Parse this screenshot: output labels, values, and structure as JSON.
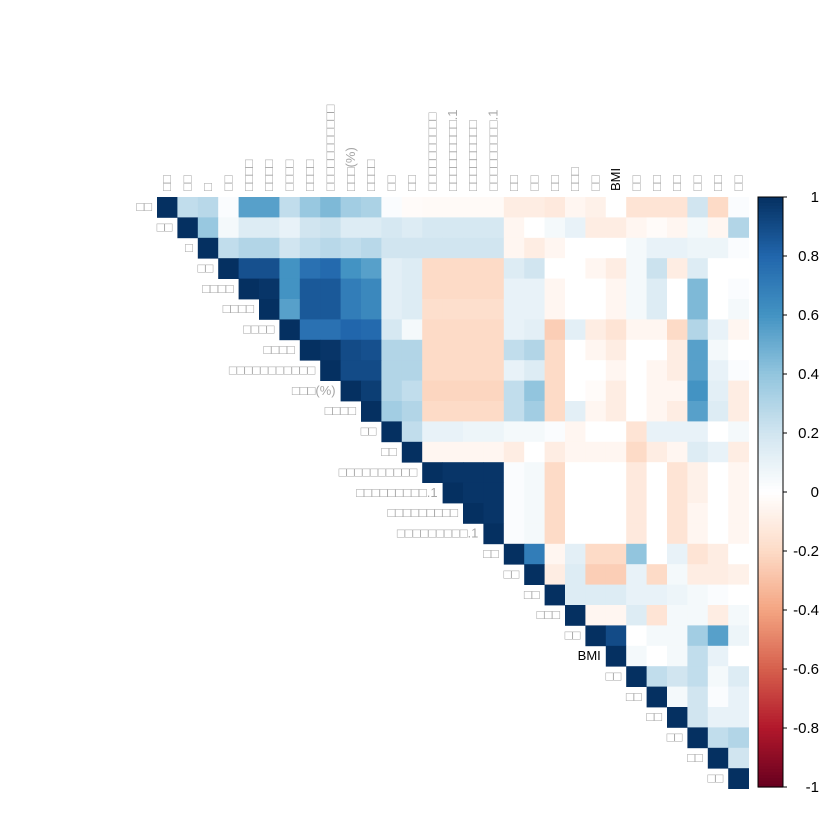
{
  "chart_data": {
    "type": "heatmap",
    "layout": "upper-triangular correlation matrix",
    "labels": [
      "□□",
      "□□",
      "□",
      "□□",
      "□□□□",
      "□□□□",
      "□□□□",
      "□□□□",
      "□□□□□□□□□□□",
      "□□□(%)",
      "□□□□",
      "□□",
      "□□",
      "□□□□□□□□□□",
      "□□□□□□□□□.1",
      "□□□□□□□□□",
      "□□□□□□□□□.1",
      "□□",
      "□□",
      "□□",
      "□□□",
      "□□",
      "BMI",
      "□□",
      "□□",
      "□□",
      "□□",
      "□□",
      "□□"
    ],
    "colorbar": {
      "ticks": [
        "1",
        "0.8",
        "0.6",
        "0.4",
        "0.2",
        "0",
        "-0.2",
        "-0.4",
        "-0.6",
        "-0.8",
        "-1"
      ],
      "range": [
        -1,
        1
      ]
    },
    "palette": [
      "#67001F",
      "#B2182B",
      "#D6604D",
      "#F4A582",
      "#FDDBC7",
      "#FFFFFF",
      "#D1E5F0",
      "#92C5DE",
      "#4393C3",
      "#2166AC",
      "#053061"
    ],
    "values": [
      [
        1,
        0.25,
        0.28,
        0.02,
        0.55,
        0.55,
        0.25,
        0.38,
        0.45,
        0.35,
        0.32,
        0.02,
        -0.02,
        -0.03,
        -0.03,
        -0.03,
        -0.03,
        -0.1,
        -0.1,
        -0.12,
        -0.05,
        -0.08,
        0,
        -0.15,
        -0.15,
        -0.15,
        0.2,
        -0.2,
        0.02
      ],
      [
        null,
        1,
        0.38,
        0.05,
        0.15,
        0.15,
        0.1,
        0.2,
        0.22,
        0.15,
        0.15,
        0.18,
        0.15,
        0.18,
        0.18,
        0.18,
        0.18,
        -0.05,
        0,
        0.05,
        0.1,
        -0.1,
        -0.1,
        -0.05,
        -0.02,
        -0.05,
        0.05,
        -0.05,
        0.3
      ],
      [
        null,
        null,
        1,
        0.25,
        0.3,
        0.3,
        0.2,
        0.25,
        0.28,
        0.25,
        0.28,
        0.2,
        0.2,
        0.2,
        0.2,
        0.2,
        0.2,
        -0.05,
        -0.1,
        -0.05,
        0,
        0,
        0,
        0.05,
        0.1,
        0.1,
        0.08,
        0.08,
        0.02
      ],
      [
        null,
        null,
        null,
        1,
        0.88,
        0.88,
        0.6,
        0.75,
        0.78,
        0.6,
        0.55,
        0.12,
        0.15,
        -0.2,
        -0.2,
        -0.2,
        -0.2,
        0.15,
        0.2,
        0,
        0,
        -0.05,
        -0.1,
        0.05,
        0.22,
        -0.1,
        0.15,
        0,
        0
      ],
      [
        null,
        null,
        null,
        null,
        1,
        0.98,
        0.6,
        0.85,
        0.85,
        0.7,
        0.65,
        0.12,
        0.15,
        -0.2,
        -0.2,
        -0.2,
        -0.2,
        0.1,
        0.1,
        -0.05,
        0,
        0,
        -0.05,
        0.05,
        0.15,
        0,
        0.45,
        0,
        0.02
      ],
      [
        null,
        null,
        null,
        null,
        null,
        1,
        0.55,
        0.85,
        0.85,
        0.7,
        0.65,
        0.12,
        0.15,
        -0.18,
        -0.18,
        -0.18,
        -0.18,
        0.1,
        0.1,
        -0.05,
        0,
        0,
        -0.05,
        0.05,
        0.15,
        0,
        0.45,
        0,
        0.05
      ],
      [
        null,
        null,
        null,
        null,
        null,
        null,
        1,
        0.75,
        0.75,
        0.8,
        0.78,
        0.18,
        0.05,
        -0.2,
        -0.2,
        -0.2,
        -0.2,
        0.1,
        0.12,
        -0.25,
        0.12,
        -0.1,
        -0.15,
        -0.05,
        -0.05,
        -0.2,
        0.3,
        0.1,
        -0.05
      ],
      [
        null,
        null,
        null,
        null,
        null,
        null,
        null,
        1,
        0.98,
        0.9,
        0.88,
        0.3,
        0.3,
        -0.2,
        -0.2,
        -0.2,
        -0.2,
        0.25,
        0.3,
        -0.2,
        0,
        -0.05,
        -0.1,
        0,
        0,
        -0.1,
        0.55,
        0.05,
        0
      ],
      [
        null,
        null,
        null,
        null,
        null,
        null,
        null,
        null,
        1,
        0.9,
        0.9,
        0.3,
        0.3,
        -0.2,
        -0.2,
        -0.2,
        -0.2,
        0.1,
        0.15,
        -0.2,
        0,
        0,
        -0.05,
        0,
        -0.05,
        -0.1,
        0.55,
        0.1,
        0.02
      ],
      [
        null,
        null,
        null,
        null,
        null,
        null,
        null,
        null,
        null,
        1,
        0.95,
        0.3,
        0.25,
        -0.22,
        -0.22,
        -0.22,
        -0.22,
        0.25,
        0.4,
        -0.2,
        0,
        -0.02,
        -0.1,
        0,
        -0.05,
        -0.05,
        0.6,
        0.12,
        -0.1
      ],
      [
        null,
        null,
        null,
        null,
        null,
        null,
        null,
        null,
        null,
        null,
        1,
        0.35,
        0.3,
        -0.2,
        -0.2,
        -0.2,
        -0.2,
        0.25,
        0.35,
        -0.2,
        0.12,
        -0.05,
        -0.1,
        0,
        -0.05,
        -0.1,
        0.55,
        0.15,
        -0.1
      ],
      [
        null,
        null,
        null,
        null,
        null,
        null,
        null,
        null,
        null,
        null,
        null,
        1,
        0.25,
        0.1,
        0.1,
        0.08,
        0.08,
        0.05,
        0.05,
        0.02,
        -0.05,
        0,
        0,
        -0.15,
        0.1,
        0.1,
        0.1,
        0,
        0.05
      ],
      [
        null,
        null,
        null,
        null,
        null,
        null,
        null,
        null,
        null,
        null,
        null,
        null,
        1,
        -0.05,
        -0.05,
        -0.05,
        -0.05,
        -0.1,
        0,
        -0.1,
        -0.05,
        -0.05,
        -0.05,
        -0.2,
        -0.1,
        -0.05,
        0.15,
        0.1,
        -0.1
      ],
      [
        null,
        null,
        null,
        null,
        null,
        null,
        null,
        null,
        null,
        null,
        null,
        null,
        null,
        1,
        0.98,
        0.98,
        0.98,
        0.02,
        0.05,
        -0.2,
        0,
        0,
        0,
        -0.12,
        0,
        -0.15,
        -0.08,
        0,
        -0.05
      ],
      [
        null,
        null,
        null,
        null,
        null,
        null,
        null,
        null,
        null,
        null,
        null,
        null,
        null,
        null,
        1,
        0.98,
        0.98,
        0.02,
        0.05,
        -0.2,
        0,
        0,
        0,
        -0.12,
        0,
        -0.15,
        -0.08,
        0,
        -0.05
      ],
      [
        null,
        null,
        null,
        null,
        null,
        null,
        null,
        null,
        null,
        null,
        null,
        null,
        null,
        null,
        null,
        1,
        0.98,
        0.02,
        0.05,
        -0.2,
        0,
        0,
        0,
        -0.12,
        0,
        -0.15,
        -0.05,
        0,
        -0.05
      ],
      [
        null,
        null,
        null,
        null,
        null,
        null,
        null,
        null,
        null,
        null,
        null,
        null,
        null,
        null,
        null,
        null,
        1,
        0.02,
        0.05,
        -0.2,
        0,
        0,
        0,
        -0.12,
        0,
        -0.15,
        -0.05,
        0,
        -0.05
      ],
      [
        null,
        null,
        null,
        null,
        null,
        null,
        null,
        null,
        null,
        null,
        null,
        null,
        null,
        null,
        null,
        null,
        null,
        1,
        0.7,
        -0.05,
        0.12,
        -0.2,
        -0.2,
        0.4,
        0,
        0.1,
        -0.15,
        -0.1,
        0
      ],
      [
        null,
        null,
        null,
        null,
        null,
        null,
        null,
        null,
        null,
        null,
        null,
        null,
        null,
        null,
        null,
        null,
        null,
        null,
        1,
        -0.1,
        0.15,
        -0.25,
        -0.25,
        0.1,
        -0.2,
        0.05,
        -0.1,
        -0.1,
        -0.08
      ],
      [
        null,
        null,
        null,
        null,
        null,
        null,
        null,
        null,
        null,
        null,
        null,
        null,
        null,
        null,
        null,
        null,
        null,
        null,
        null,
        1,
        0.15,
        0.15,
        0.15,
        0.1,
        0.1,
        0.08,
        0.05,
        0.02,
        0
      ],
      [
        null,
        null,
        null,
        null,
        null,
        null,
        null,
        null,
        null,
        null,
        null,
        null,
        null,
        null,
        null,
        null,
        null,
        null,
        null,
        null,
        1,
        -0.05,
        -0.05,
        0.15,
        -0.15,
        0.05,
        0.05,
        -0.1,
        0.05
      ],
      [
        null,
        null,
        null,
        null,
        null,
        null,
        null,
        null,
        null,
        null,
        null,
        null,
        null,
        null,
        null,
        null,
        null,
        null,
        null,
        null,
        null,
        1,
        0.9,
        0,
        0.05,
        0.05,
        0.35,
        0.55,
        0.08
      ],
      [
        null,
        null,
        null,
        null,
        null,
        null,
        null,
        null,
        null,
        null,
        null,
        null,
        null,
        null,
        null,
        null,
        null,
        null,
        null,
        null,
        null,
        null,
        1,
        0.05,
        0,
        0.05,
        0.25,
        0.1,
        0
      ],
      [
        null,
        null,
        null,
        null,
        null,
        null,
        null,
        null,
        null,
        null,
        null,
        null,
        null,
        null,
        null,
        null,
        null,
        null,
        null,
        null,
        null,
        null,
        null,
        1,
        0.25,
        0.2,
        0.25,
        0.05,
        0.15
      ],
      [
        null,
        null,
        null,
        null,
        null,
        null,
        null,
        null,
        null,
        null,
        null,
        null,
        null,
        null,
        null,
        null,
        null,
        null,
        null,
        null,
        null,
        null,
        null,
        null,
        1,
        0.05,
        0.2,
        0.02,
        0.1
      ],
      [
        null,
        null,
        null,
        null,
        null,
        null,
        null,
        null,
        null,
        null,
        null,
        null,
        null,
        null,
        null,
        null,
        null,
        null,
        null,
        null,
        null,
        null,
        null,
        null,
        null,
        1,
        0.2,
        0.1,
        0.1
      ],
      [
        null,
        null,
        null,
        null,
        null,
        null,
        null,
        null,
        null,
        null,
        null,
        null,
        null,
        null,
        null,
        null,
        null,
        null,
        null,
        null,
        null,
        null,
        null,
        null,
        null,
        null,
        1,
        0.25,
        0.3
      ],
      [
        null,
        null,
        null,
        null,
        null,
        null,
        null,
        null,
        null,
        null,
        null,
        null,
        null,
        null,
        null,
        null,
        null,
        null,
        null,
        null,
        null,
        null,
        null,
        null,
        null,
        null,
        null,
        1,
        0.2
      ],
      [
        null,
        null,
        null,
        null,
        null,
        null,
        null,
        null,
        null,
        null,
        null,
        null,
        null,
        null,
        null,
        null,
        null,
        null,
        null,
        null,
        null,
        null,
        null,
        null,
        null,
        null,
        null,
        null,
        1
      ]
    ]
  }
}
